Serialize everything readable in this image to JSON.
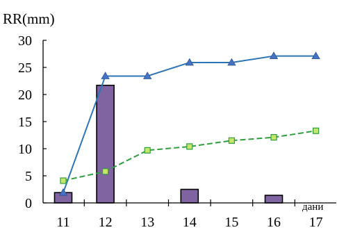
{
  "chart_data": {
    "type": "bar",
    "ylabel": "RR(mm)",
    "xlabel": "дани",
    "categories": [
      "11",
      "12",
      "13",
      "14",
      "15",
      "16",
      "17"
    ],
    "ylim": [
      0,
      30
    ],
    "yticks": [
      "0",
      "5",
      "10",
      "15",
      "20",
      "25",
      "30"
    ],
    "grid": false,
    "legend": "none",
    "series": [
      {
        "type": "bar",
        "values": [
          1.9,
          21.7,
          0,
          2.5,
          0,
          1.4,
          0
        ],
        "color": "#8064a2"
      },
      {
        "type": "line",
        "marker": "triangle",
        "values": [
          1.9,
          23.4,
          23.4,
          25.9,
          25.9,
          27.1,
          27.1
        ],
        "color": "#2e75b6"
      },
      {
        "type": "line",
        "marker": "square",
        "dashed": true,
        "values": [
          4.1,
          5.8,
          9.7,
          10.4,
          11.5,
          12.1,
          13.3
        ],
        "color": "#2e9e3e"
      }
    ]
  }
}
